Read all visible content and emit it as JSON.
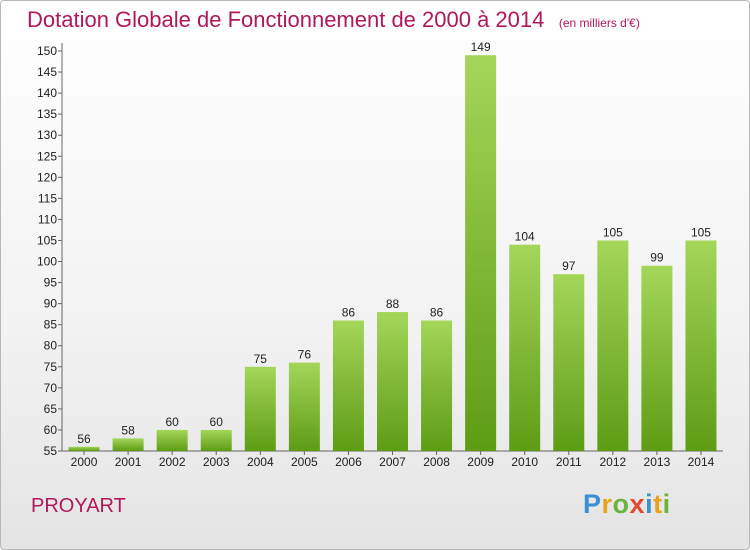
{
  "header": {
    "title": "Dotation Globale de Fonctionnement de 2000 à 2014",
    "unit": "(en milliers d'€)"
  },
  "footer": {
    "commune": "PROYART",
    "logo_letters": [
      "P",
      "r",
      "o",
      "x",
      "i",
      "t",
      "i"
    ],
    "logo_colors": [
      "#3b8fd4",
      "#e8a21c",
      "#6ab43c",
      "#e04a2f",
      "#3b8fd4",
      "#e8a21c",
      "#6ab43c"
    ]
  },
  "chart_data": {
    "type": "bar",
    "categories": [
      "2000",
      "2001",
      "2002",
      "2003",
      "2004",
      "2005",
      "2006",
      "2007",
      "2008",
      "2009",
      "2010",
      "2011",
      "2012",
      "2013",
      "2014"
    ],
    "values": [
      56,
      58,
      60,
      60,
      75,
      76,
      86,
      88,
      86,
      149,
      104,
      97,
      105,
      99,
      105
    ],
    "ylim": [
      55,
      150
    ],
    "ytick_step": 5,
    "grid": false,
    "bar_color_light": "#a4d65a",
    "bar_color_dark": "#5e9c14",
    "title": "Dotation Globale de Fonctionnement de 2000 à 2014",
    "xlabel": "",
    "ylabel": ""
  }
}
